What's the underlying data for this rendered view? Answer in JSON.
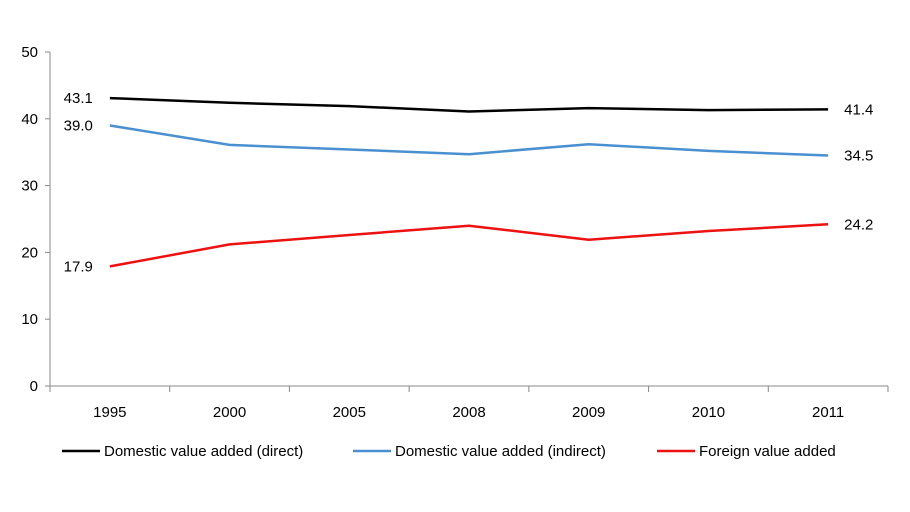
{
  "chart_data": {
    "type": "line",
    "categories": [
      "1995",
      "2000",
      "2005",
      "2008",
      "2009",
      "2010",
      "2011"
    ],
    "ylim": [
      0,
      50
    ],
    "yticks": [
      0,
      10,
      20,
      30,
      40,
      50
    ],
    "grid": false,
    "legend_position": "bottom",
    "series": [
      {
        "name": "Domestic value added (direct)",
        "color": "#000000",
        "values": [
          43.1,
          42.4,
          41.9,
          41.1,
          41.6,
          41.3,
          41.4
        ]
      },
      {
        "name": "Domestic value added (indirect)",
        "color": "#4a90d0",
        "values": [
          39.0,
          36.1,
          35.4,
          34.7,
          36.2,
          35.2,
          34.5
        ]
      },
      {
        "name": "Foreign value added",
        "color": "#ee1111",
        "values": [
          17.9,
          21.2,
          22.6,
          24.0,
          21.9,
          23.2,
          24.2
        ]
      }
    ],
    "data_labels": [
      {
        "series": 0,
        "index": 0,
        "text": "43.1"
      },
      {
        "series": 0,
        "index": 6,
        "text": "41.4"
      },
      {
        "series": 1,
        "index": 0,
        "text": "39.0"
      },
      {
        "series": 1,
        "index": 6,
        "text": "34.5"
      },
      {
        "series": 2,
        "index": 0,
        "text": "17.9"
      },
      {
        "series": 2,
        "index": 6,
        "text": "24.2"
      }
    ]
  }
}
